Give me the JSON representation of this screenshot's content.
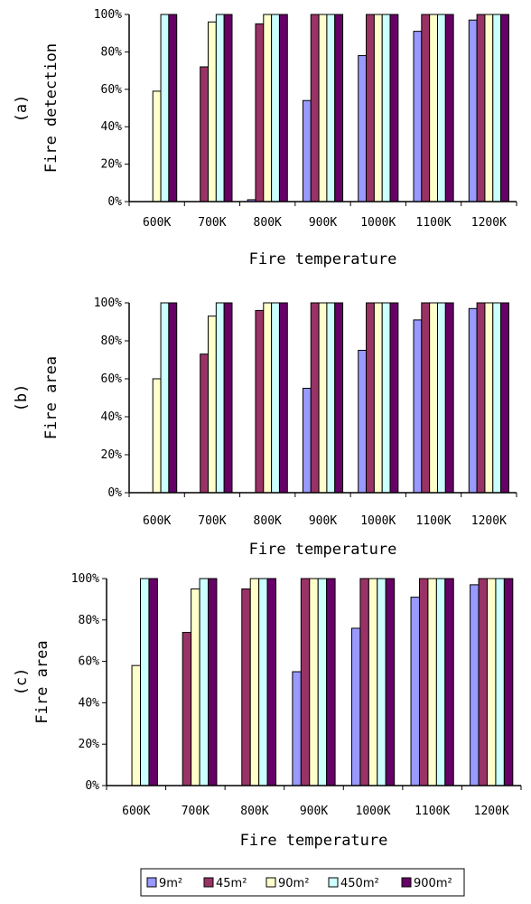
{
  "chart_data": [
    {
      "type": "bar",
      "panel_label": "(a)",
      "ylabel": "Fire detection",
      "xlabel": "Fire temperature",
      "categories": [
        "600K",
        "700K",
        "800K",
        "900K",
        "1000K",
        "1100K",
        "1200K"
      ],
      "yticks": [
        "0%",
        "20%",
        "40%",
        "60%",
        "80%",
        "100%"
      ],
      "ylim": [
        0,
        100
      ],
      "grid": false,
      "series": [
        {
          "name": "9m²",
          "color": "#9999FF",
          "values": [
            0,
            0,
            1,
            54,
            78,
            91,
            97
          ]
        },
        {
          "name": "45m²",
          "color": "#993366",
          "values": [
            0,
            72,
            95,
            100,
            100,
            100,
            100
          ]
        },
        {
          "name": "90m²",
          "color": "#FFFFCC",
          "values": [
            59,
            96,
            100,
            100,
            100,
            100,
            100
          ]
        },
        {
          "name": "450m²",
          "color": "#CCFFFF",
          "values": [
            100,
            100,
            100,
            100,
            100,
            100,
            100
          ]
        },
        {
          "name": "900m²",
          "color": "#660066",
          "values": [
            100,
            100,
            100,
            100,
            100,
            100,
            100
          ]
        }
      ]
    },
    {
      "type": "bar",
      "panel_label": "(b)",
      "ylabel": "Fire area",
      "xlabel": "Fire temperature",
      "categories": [
        "600K",
        "700K",
        "800K",
        "900K",
        "1000K",
        "1100K",
        "1200K"
      ],
      "yticks": [
        "0%",
        "20%",
        "40%",
        "60%",
        "80%",
        "100%"
      ],
      "ylim": [
        0,
        100
      ],
      "grid": false,
      "series": [
        {
          "name": "9m²",
          "color": "#9999FF",
          "values": [
            0,
            0,
            0,
            55,
            75,
            91,
            97
          ]
        },
        {
          "name": "45m²",
          "color": "#993366",
          "values": [
            0,
            73,
            96,
            100,
            100,
            100,
            100
          ]
        },
        {
          "name": "90m²",
          "color": "#FFFFCC",
          "values": [
            60,
            93,
            100,
            100,
            100,
            100,
            100
          ]
        },
        {
          "name": "450m²",
          "color": "#CCFFFF",
          "values": [
            100,
            100,
            100,
            100,
            100,
            100,
            100
          ]
        },
        {
          "name": "900m²",
          "color": "#660066",
          "values": [
            100,
            100,
            100,
            100,
            100,
            100,
            100
          ]
        }
      ]
    },
    {
      "type": "bar",
      "panel_label": "(c)",
      "ylabel": "Fire area",
      "xlabel": "Fire temperature",
      "categories": [
        "600K",
        "700K",
        "800K",
        "900K",
        "1000K",
        "1100K",
        "1200K"
      ],
      "yticks": [
        "0%",
        "20%",
        "40%",
        "60%",
        "80%",
        "100%"
      ],
      "ylim": [
        0,
        100
      ],
      "grid": false,
      "series": [
        {
          "name": "9m²",
          "color": "#9999FF",
          "values": [
            0,
            0,
            0,
            55,
            76,
            91,
            97
          ]
        },
        {
          "name": "45m²",
          "color": "#993366",
          "values": [
            0,
            74,
            95,
            100,
            100,
            100,
            100
          ]
        },
        {
          "name": "90m²",
          "color": "#FFFFCC",
          "values": [
            58,
            95,
            100,
            100,
            100,
            100,
            100
          ]
        },
        {
          "name": "450m²",
          "color": "#CCFFFF",
          "values": [
            100,
            100,
            100,
            100,
            100,
            100,
            100
          ]
        },
        {
          "name": "900m²",
          "color": "#660066",
          "values": [
            100,
            100,
            100,
            100,
            100,
            100,
            100
          ]
        }
      ]
    }
  ],
  "legend": {
    "position": "bottom-center",
    "items": [
      {
        "label": "9m²",
        "color": "#9999FF"
      },
      {
        "label": "45m²",
        "color": "#993366"
      },
      {
        "label": "90m²",
        "color": "#FFFFCC"
      },
      {
        "label": "450m²",
        "color": "#CCFFFF"
      },
      {
        "label": "900m²",
        "color": "#660066"
      }
    ]
  }
}
